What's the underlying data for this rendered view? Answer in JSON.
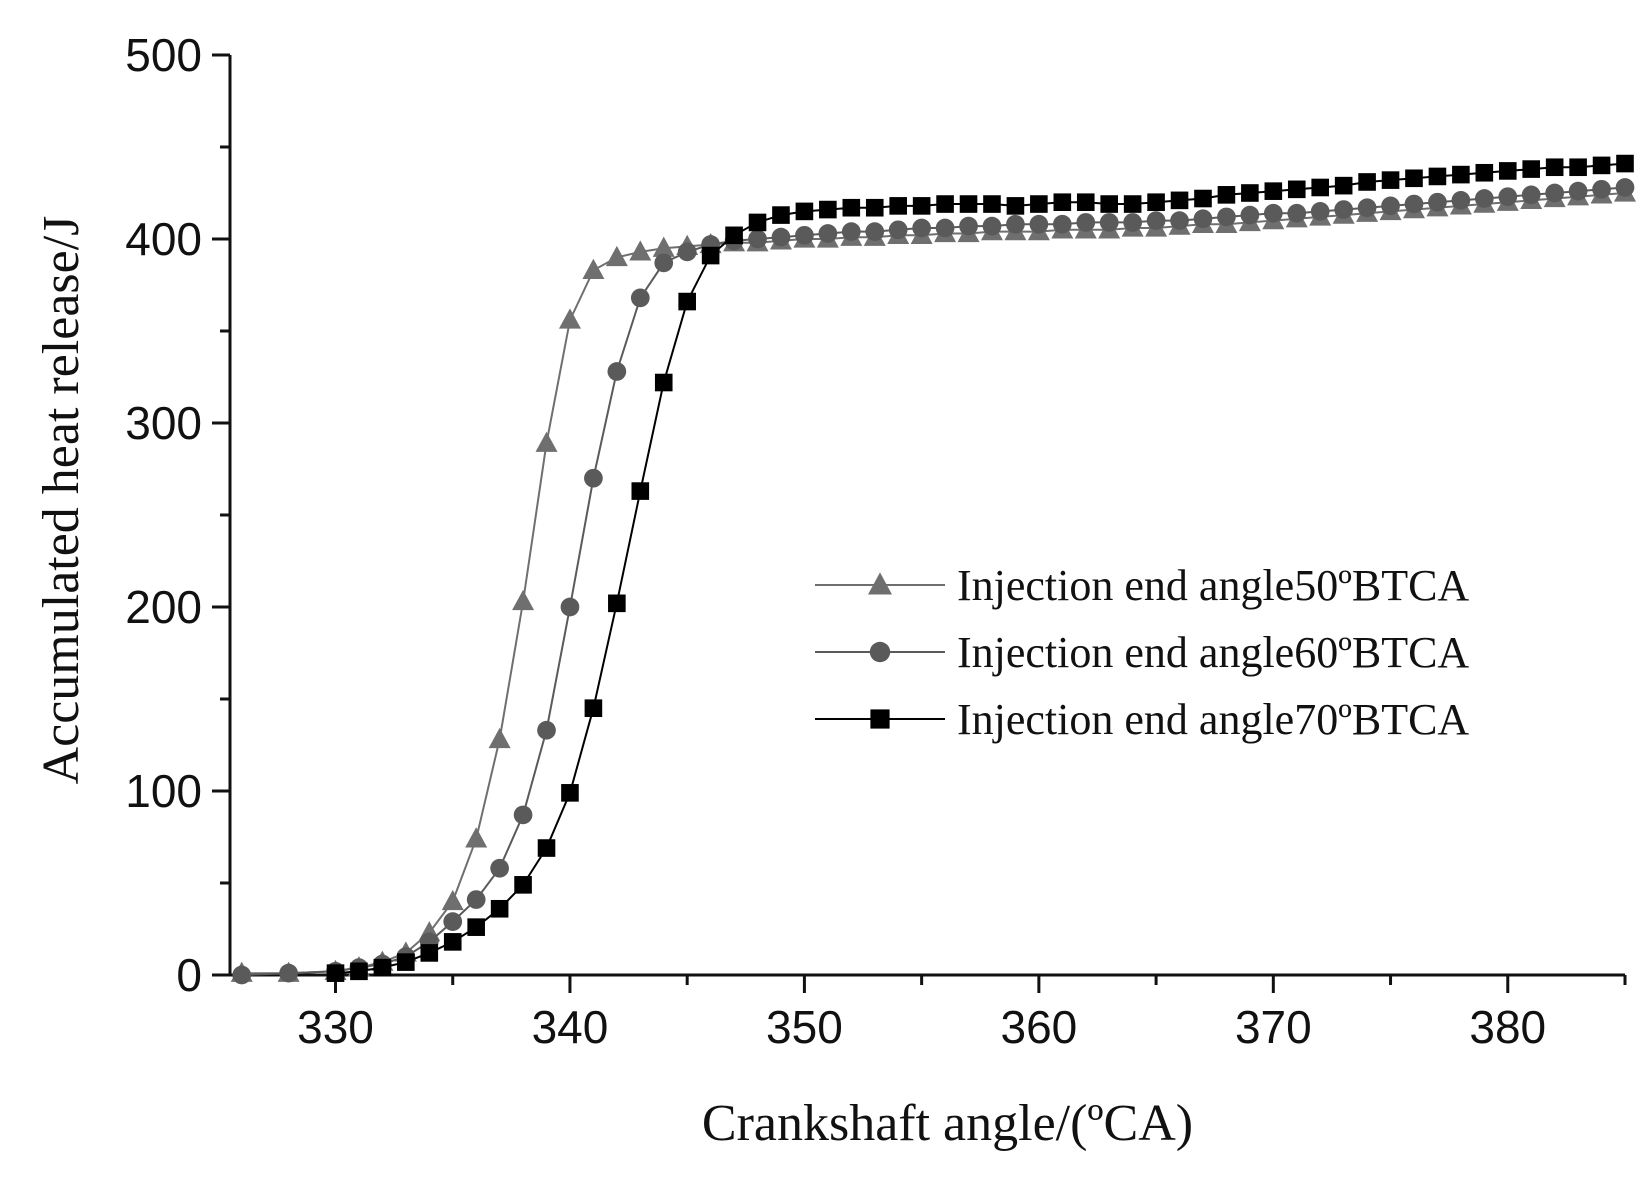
{
  "chart_data": {
    "type": "line",
    "title": "",
    "xlabel": "Crankshaft angle/(ºCA)",
    "ylabel": "Accumulated heat release/J",
    "xlim": [
      325.5,
      385
    ],
    "ylim": [
      0,
      500
    ],
    "xticks": [
      330,
      340,
      350,
      360,
      370,
      380
    ],
    "yticks": [
      0,
      100,
      200,
      300,
      400,
      500
    ],
    "x_minor_step": 5,
    "y_minor_step": 50,
    "grid": false,
    "legend_position": "center-right",
    "series": [
      {
        "name": "Injection end angle50ºBTCA",
        "marker": "triangle",
        "color": "#6f6f6f",
        "x": [
          326,
          328,
          330,
          331,
          332,
          333,
          334,
          335,
          336,
          337,
          338,
          339,
          340,
          341,
          342,
          343,
          344,
          345,
          346,
          347,
          348,
          349,
          350,
          351,
          352,
          353,
          354,
          355,
          356,
          357,
          358,
          359,
          360,
          361,
          362,
          363,
          364,
          365,
          366,
          367,
          368,
          369,
          370,
          371,
          372,
          373,
          374,
          375,
          376,
          377,
          378,
          379,
          380,
          381,
          382,
          383,
          384,
          385
        ],
        "y": [
          1,
          1,
          2,
          4,
          7,
          12,
          23,
          40,
          74,
          128,
          203,
          289,
          356,
          383,
          390,
          393,
          395,
          396,
          397,
          398,
          398,
          399,
          400,
          400,
          401,
          401,
          402,
          402,
          403,
          403,
          404,
          404,
          404,
          405,
          405,
          405,
          406,
          406,
          407,
          408,
          408,
          409,
          410,
          411,
          412,
          413,
          414,
          415,
          416,
          417,
          418,
          419,
          420,
          421,
          422,
          423,
          424,
          425
        ]
      },
      {
        "name": "Injection end angle60ºBTCA",
        "marker": "circle",
        "color": "#5a5a5a",
        "x": [
          326,
          328,
          330,
          331,
          332,
          333,
          334,
          335,
          336,
          337,
          338,
          339,
          340,
          341,
          342,
          343,
          344,
          345,
          346,
          347,
          348,
          349,
          350,
          351,
          352,
          353,
          354,
          355,
          356,
          357,
          358,
          359,
          360,
          361,
          362,
          363,
          364,
          365,
          366,
          367,
          368,
          369,
          370,
          371,
          372,
          373,
          374,
          375,
          376,
          377,
          378,
          379,
          380,
          381,
          382,
          383,
          384,
          385
        ],
        "y": [
          0,
          1,
          2,
          4,
          6,
          10,
          18,
          29,
          41,
          58,
          87,
          133,
          200,
          270,
          328,
          368,
          387,
          393,
          397,
          399,
          400,
          401,
          402,
          403,
          404,
          404,
          405,
          406,
          406,
          407,
          407,
          408,
          408,
          408,
          409,
          409,
          409,
          410,
          410,
          411,
          412,
          413,
          414,
          414,
          415,
          416,
          417,
          418,
          419,
          420,
          421,
          422,
          423,
          424,
          425,
          426,
          427,
          428
        ]
      },
      {
        "name": "Injection end angle70ºBTCA",
        "marker": "square",
        "color": "#000000",
        "x": [
          330,
          331,
          332,
          333,
          334,
          335,
          336,
          337,
          338,
          339,
          340,
          341,
          342,
          343,
          344,
          345,
          346,
          347,
          348,
          349,
          350,
          351,
          352,
          353,
          354,
          355,
          356,
          357,
          358,
          359,
          360,
          361,
          362,
          363,
          364,
          365,
          366,
          367,
          368,
          369,
          370,
          371,
          372,
          373,
          374,
          375,
          376,
          377,
          378,
          379,
          380,
          381,
          382,
          383,
          384,
          385
        ],
        "y": [
          1,
          2,
          4,
          7,
          12,
          18,
          26,
          36,
          49,
          69,
          99,
          145,
          202,
          263,
          322,
          366,
          391,
          402,
          409,
          413,
          415,
          416,
          417,
          417,
          418,
          418,
          419,
          419,
          419,
          418,
          419,
          420,
          420,
          419,
          419,
          420,
          421,
          422,
          424,
          425,
          426,
          427,
          428,
          429,
          431,
          432,
          433,
          434,
          435,
          436,
          437,
          438,
          439,
          439,
          440,
          441
        ]
      }
    ]
  }
}
